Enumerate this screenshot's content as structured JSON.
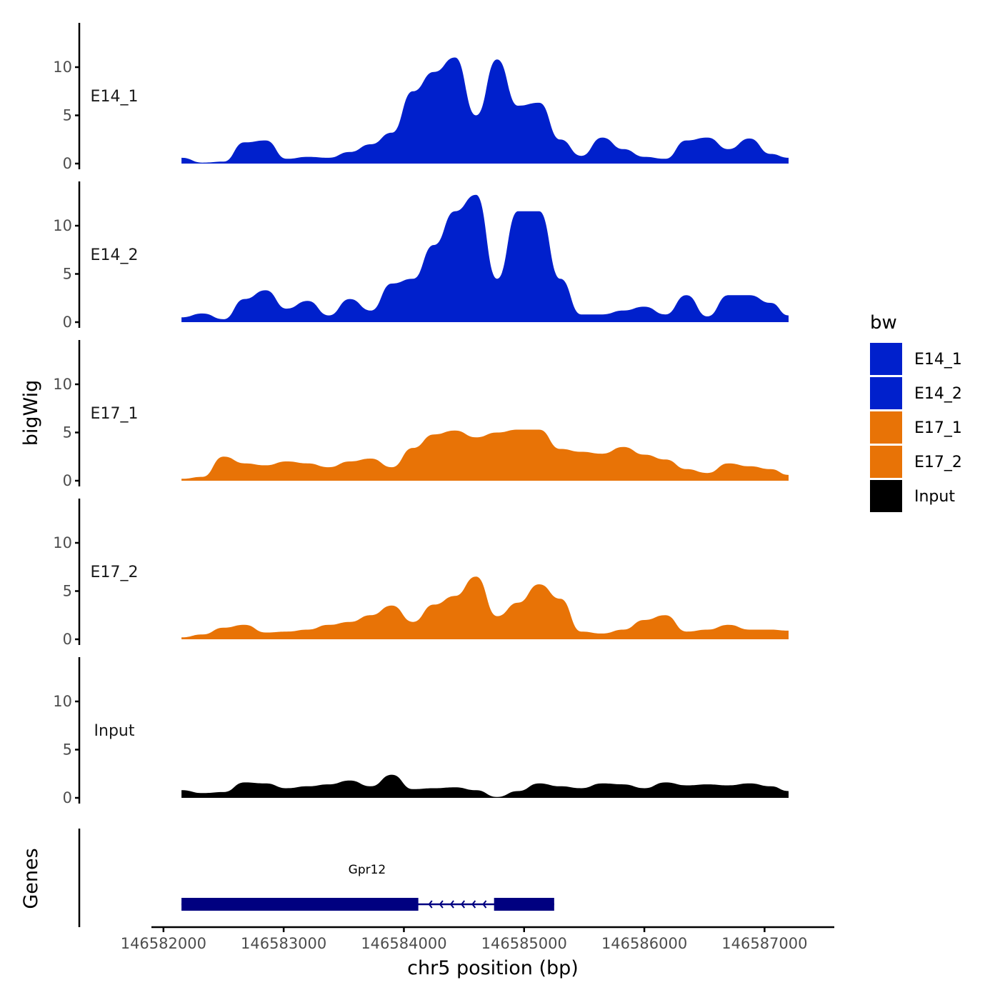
{
  "chart_data": {
    "type": "area",
    "subtype": "genome-coverage-tracks",
    "x": [
      146582150,
      146582325,
      146582500,
      146582675,
      146582850,
      146583025,
      146583200,
      146583375,
      146583550,
      146583725,
      146583900,
      146584075,
      146584250,
      146584425,
      146584600,
      146584775,
      146584950,
      146585125,
      146585300,
      146585475,
      146585650,
      146585825,
      146586000,
      146586175,
      146586350,
      146586525,
      146586700,
      146586875,
      146587050,
      146587200
    ],
    "xlim": [
      146581900,
      146587580
    ],
    "ylim": [
      0,
      14
    ],
    "xticks": [
      146582000,
      146583000,
      146584000,
      146585000,
      146586000,
      146587000
    ],
    "xtick_labels": [
      "146582000",
      "146583000",
      "146584000",
      "146585000",
      "146586000",
      "146587000"
    ],
    "yticks": [
      0,
      5,
      10
    ],
    "ytick_labels": [
      "0",
      "5",
      "10"
    ],
    "xlabel": "chr5 position (bp)",
    "ylabel": "bigWig",
    "series": [
      {
        "name": "E14_1",
        "color": "#0020CC",
        "values": [
          0.6,
          0.1,
          0.2,
          2.2,
          2.4,
          0.5,
          0.7,
          0.6,
          1.2,
          2.0,
          3.2,
          7.5,
          9.5,
          11.0,
          5.0,
          10.8,
          6.0,
          6.3,
          2.5,
          0.8,
          2.7,
          1.5,
          0.7,
          0.5,
          2.4,
          2.7,
          1.5,
          2.6,
          1.0,
          0.6
        ]
      },
      {
        "name": "E14_2",
        "color": "#0020CC",
        "values": [
          0.5,
          0.9,
          0.3,
          2.4,
          3.3,
          1.4,
          2.2,
          0.7,
          2.4,
          1.2,
          4.0,
          4.5,
          8.0,
          11.5,
          13.2,
          4.5,
          11.5,
          11.5,
          4.5,
          0.8,
          0.8,
          1.2,
          1.6,
          0.8,
          2.8,
          0.6,
          2.8,
          2.8,
          2.0,
          0.7
        ]
      },
      {
        "name": "E17_1",
        "color": "#E87306",
        "values": [
          0.2,
          0.4,
          2.5,
          1.8,
          1.6,
          2.0,
          1.8,
          1.4,
          2.0,
          2.3,
          1.4,
          3.4,
          4.8,
          5.2,
          4.5,
          5.0,
          5.3,
          5.3,
          3.3,
          3.0,
          2.8,
          3.5,
          2.7,
          2.2,
          1.2,
          0.8,
          1.8,
          1.5,
          1.2,
          0.6
        ]
      },
      {
        "name": "E17_2",
        "color": "#E87306",
        "values": [
          0.2,
          0.5,
          1.2,
          1.5,
          0.7,
          0.8,
          1.0,
          1.5,
          1.8,
          2.5,
          3.5,
          1.8,
          3.6,
          4.5,
          6.5,
          2.4,
          3.8,
          5.7,
          4.2,
          0.8,
          0.6,
          1.0,
          2.0,
          2.5,
          0.8,
          1.0,
          1.5,
          1.0,
          1.0,
          0.9
        ]
      },
      {
        "name": "Input",
        "color": "#000000",
        "values": [
          0.8,
          0.5,
          0.6,
          1.6,
          1.5,
          1.0,
          1.2,
          1.4,
          1.8,
          1.2,
          2.4,
          0.9,
          1.0,
          1.1,
          0.8,
          0.1,
          0.7,
          1.5,
          1.2,
          1.0,
          1.5,
          1.4,
          1.0,
          1.6,
          1.3,
          1.4,
          1.3,
          1.5,
          1.2,
          0.7
        ]
      }
    ],
    "legend": {
      "title": "bw",
      "position": "right",
      "entries": [
        {
          "label": "E14_1",
          "color": "#0020CC"
        },
        {
          "label": "E14_2",
          "color": "#0020CC"
        },
        {
          "label": "E17_1",
          "color": "#E87306"
        },
        {
          "label": "E17_2",
          "color": "#E87306"
        },
        {
          "label": "Input",
          "color": "#000000"
        }
      ]
    },
    "genes": {
      "track_label": "Genes",
      "color": "#000080",
      "items": [
        {
          "name": "Gpr12",
          "strand": "-",
          "start": 146582150,
          "end": 146585250,
          "exons": [
            {
              "start": 146582150,
              "end": 146584120
            },
            {
              "start": 146584750,
              "end": 146585250
            }
          ]
        }
      ]
    }
  }
}
